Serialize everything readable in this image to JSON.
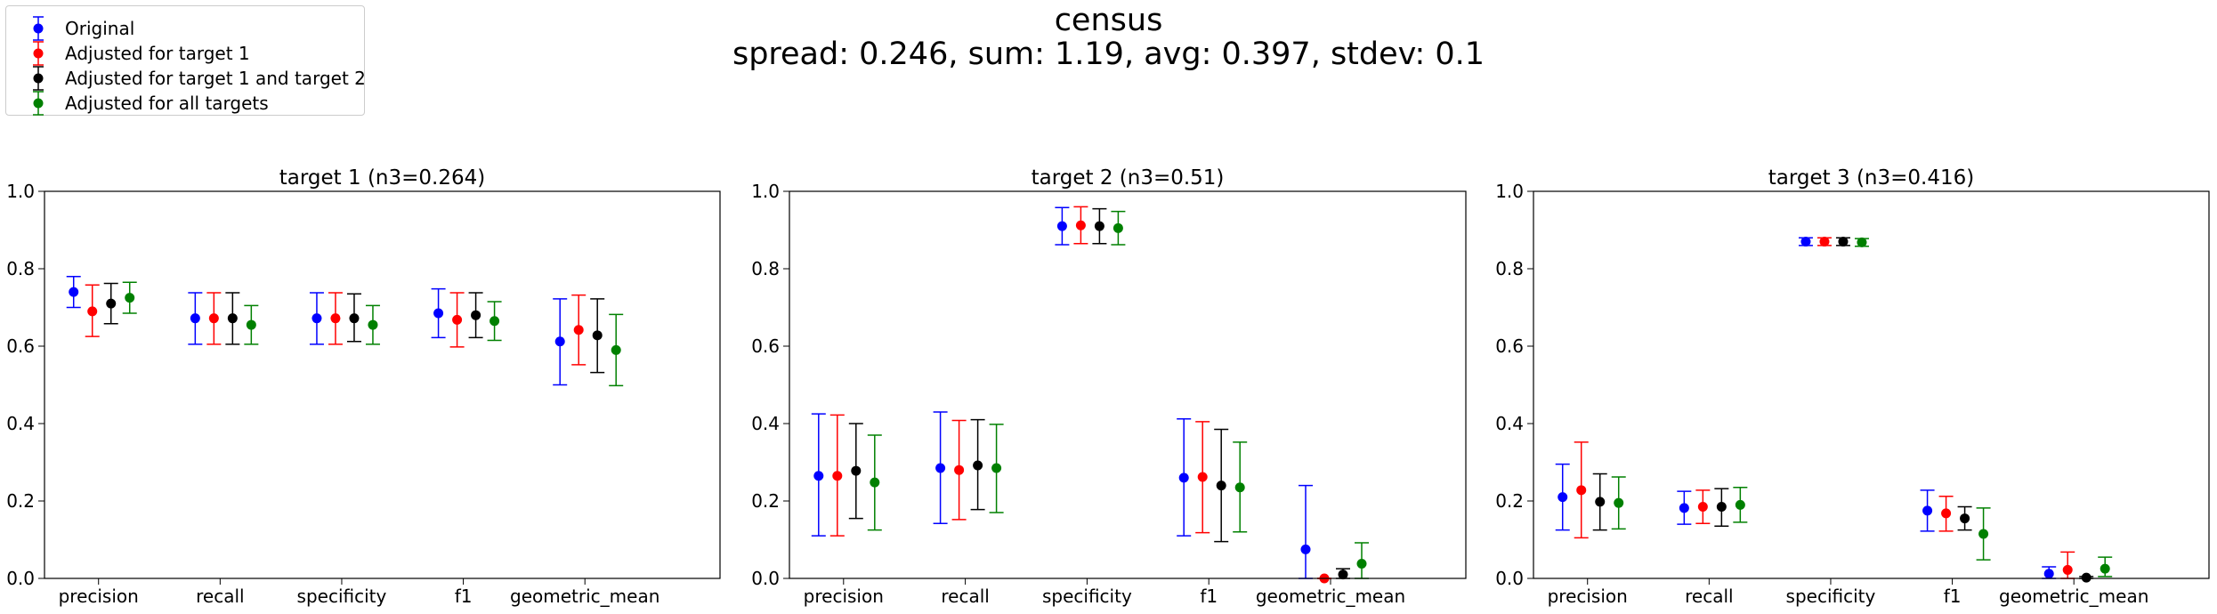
{
  "title": "census",
  "subtitle": "spread: 0.246, sum: 1.19, avg: 0.397, stdev: 0.1",
  "legend": [
    {
      "label": "Original",
      "color": "#0000ff"
    },
    {
      "label": "Adjusted for target 1",
      "color": "#ff0000"
    },
    {
      "label": "Adjusted for target 1 and target 2",
      "color": "#000000"
    },
    {
      "label": "Adjusted for all targets",
      "color": "#008000"
    }
  ],
  "chart_data": [
    {
      "type": "scatter",
      "title": "target 1 (n3=0.264)",
      "categories": [
        "precision",
        "recall",
        "specificity",
        "f1",
        "geometric_mean"
      ],
      "ylim": [
        0,
        1.0
      ],
      "yticks": [
        "0.0",
        "0.2",
        "0.4",
        "0.6",
        "0.8",
        "1.0"
      ],
      "series": [
        {
          "name": "Original",
          "values": [
            0.74,
            0.672,
            0.672,
            0.685,
            0.612
          ],
          "err_low": [
            0.7,
            0.605,
            0.605,
            0.622,
            0.5
          ],
          "err_high": [
            0.78,
            0.738,
            0.738,
            0.748,
            0.722
          ]
        },
        {
          "name": "Adjusted for target 1",
          "values": [
            0.69,
            0.672,
            0.672,
            0.668,
            0.642
          ],
          "err_low": [
            0.625,
            0.605,
            0.605,
            0.598,
            0.552
          ],
          "err_high": [
            0.758,
            0.738,
            0.738,
            0.738,
            0.732
          ]
        },
        {
          "name": "Adjusted for target 1 and target 2",
          "values": [
            0.71,
            0.672,
            0.672,
            0.68,
            0.628
          ],
          "err_low": [
            0.658,
            0.605,
            0.612,
            0.622,
            0.532
          ],
          "err_high": [
            0.762,
            0.738,
            0.735,
            0.738,
            0.722
          ]
        },
        {
          "name": "Adjusted for all targets",
          "values": [
            0.725,
            0.655,
            0.655,
            0.665,
            0.59
          ],
          "err_low": [
            0.685,
            0.605,
            0.605,
            0.615,
            0.498
          ],
          "err_high": [
            0.765,
            0.705,
            0.705,
            0.715,
            0.682
          ]
        }
      ]
    },
    {
      "type": "scatter",
      "title": "target 2 (n3=0.51)",
      "categories": [
        "precision",
        "recall",
        "specificity",
        "f1",
        "geometric_mean"
      ],
      "ylim": [
        0,
        1.0
      ],
      "yticks": [
        "0.0",
        "0.2",
        "0.4",
        "0.6",
        "0.8",
        "1.0"
      ],
      "series": [
        {
          "name": "Original",
          "values": [
            0.265,
            0.285,
            0.91,
            0.26,
            0.075
          ],
          "err_low": [
            0.11,
            0.142,
            0.862,
            0.11,
            0.0
          ],
          "err_high": [
            0.425,
            0.43,
            0.958,
            0.412,
            0.24
          ]
        },
        {
          "name": "Adjusted for target 1",
          "values": [
            0.265,
            0.28,
            0.912,
            0.262,
            0.0
          ],
          "err_low": [
            0.11,
            0.152,
            0.865,
            0.118,
            0.0
          ],
          "err_high": [
            0.422,
            0.408,
            0.96,
            0.405,
            0.0
          ]
        },
        {
          "name": "Adjusted for target 1 and target 2",
          "values": [
            0.278,
            0.292,
            0.91,
            0.24,
            0.01
          ],
          "err_low": [
            0.155,
            0.178,
            0.865,
            0.095,
            0.0
          ],
          "err_high": [
            0.4,
            0.41,
            0.955,
            0.385,
            0.025
          ]
        },
        {
          "name": "Adjusted for all targets",
          "values": [
            0.248,
            0.285,
            0.905,
            0.235,
            0.038
          ],
          "err_low": [
            0.125,
            0.17,
            0.862,
            0.12,
            0.0
          ],
          "err_high": [
            0.37,
            0.398,
            0.948,
            0.352,
            0.092
          ]
        }
      ]
    },
    {
      "type": "scatter",
      "title": "target 3 (n3=0.416)",
      "categories": [
        "precision",
        "recall",
        "specificity",
        "f1",
        "geometric_mean"
      ],
      "ylim": [
        0,
        1.0
      ],
      "yticks": [
        "0.0",
        "0.2",
        "0.4",
        "0.6",
        "0.8",
        "1.0"
      ],
      "series": [
        {
          "name": "Original",
          "values": [
            0.21,
            0.182,
            0.87,
            0.175,
            0.012
          ],
          "err_low": [
            0.125,
            0.14,
            0.86,
            0.122,
            0.0
          ],
          "err_high": [
            0.295,
            0.225,
            0.88,
            0.228,
            0.03
          ]
        },
        {
          "name": "Adjusted for target 1",
          "values": [
            0.228,
            0.185,
            0.87,
            0.168,
            0.022
          ],
          "err_low": [
            0.105,
            0.142,
            0.86,
            0.122,
            0.0
          ],
          "err_high": [
            0.352,
            0.228,
            0.88,
            0.212,
            0.068
          ]
        },
        {
          "name": "Adjusted for target 1 and target 2",
          "values": [
            0.198,
            0.185,
            0.87,
            0.155,
            0.002
          ],
          "err_low": [
            0.125,
            0.135,
            0.86,
            0.125,
            0.0
          ],
          "err_high": [
            0.27,
            0.232,
            0.88,
            0.185,
            0.005
          ]
        },
        {
          "name": "Adjusted for all targets",
          "values": [
            0.195,
            0.19,
            0.868,
            0.115,
            0.025
          ],
          "err_low": [
            0.128,
            0.145,
            0.858,
            0.048,
            0.005
          ],
          "err_high": [
            0.262,
            0.235,
            0.878,
            0.182,
            0.055
          ]
        }
      ]
    }
  ]
}
